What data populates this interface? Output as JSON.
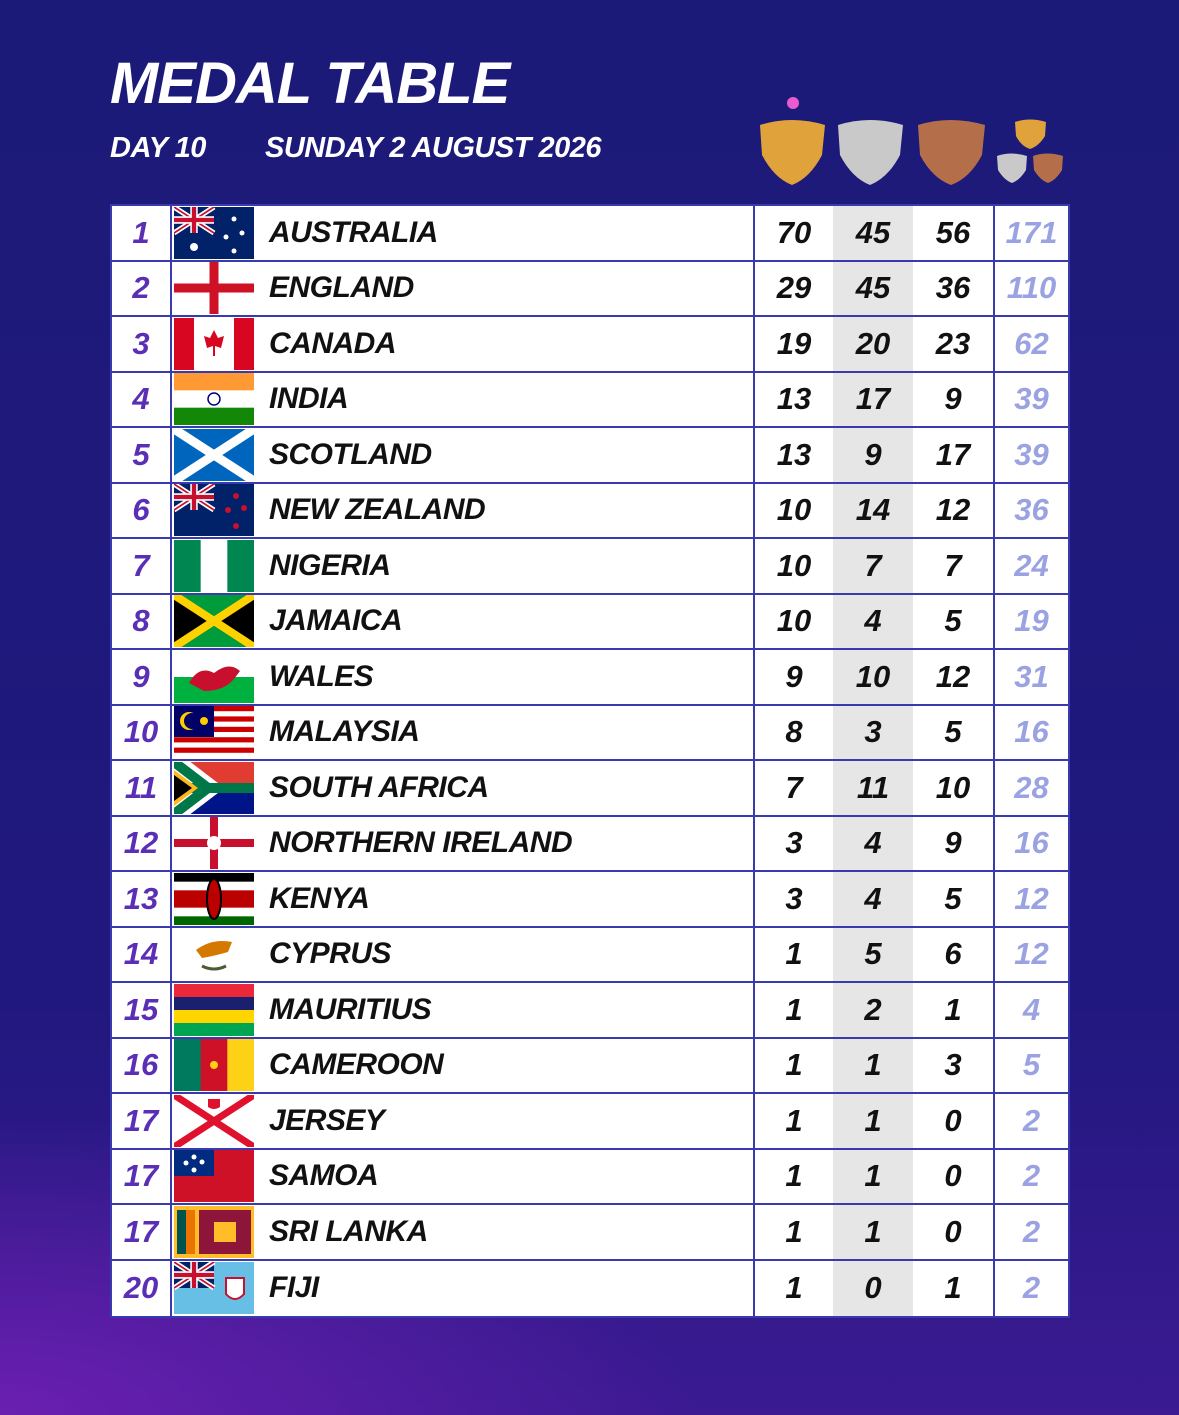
{
  "header": {
    "title": "MEDAL TABLE",
    "day": "DAY 10",
    "date": "SUNDAY 2 AUGUST 2026"
  },
  "table": {
    "rows": [
      [
        1,
        "AUSTRALIA",
        70,
        45,
        56,
        171
      ],
      [
        2,
        "ENGLAND",
        29,
        45,
        36,
        110
      ],
      [
        3,
        "CANADA",
        19,
        20,
        23,
        62
      ],
      [
        4,
        "INDIA",
        13,
        17,
        9,
        39
      ],
      [
        5,
        "SCOTLAND",
        13,
        9,
        17,
        39
      ],
      [
        6,
        "NEW ZEALAND",
        10,
        14,
        12,
        36
      ],
      [
        7,
        "NIGERIA",
        10,
        7,
        7,
        24
      ],
      [
        8,
        "JAMAICA",
        10,
        4,
        5,
        19
      ],
      [
        9,
        "WALES",
        9,
        10,
        12,
        31
      ],
      [
        10,
        "MALAYSIA",
        8,
        3,
        5,
        16
      ],
      [
        11,
        "SOUTH AFRICA",
        7,
        11,
        10,
        28
      ],
      [
        12,
        "NORTHERN IRELAND",
        3,
        4,
        9,
        16
      ],
      [
        13,
        "KENYA",
        3,
        4,
        5,
        12
      ],
      [
        14,
        "CYPRUS",
        1,
        5,
        6,
        12
      ],
      [
        15,
        "MAURITIUS",
        1,
        2,
        1,
        4
      ],
      [
        16,
        "CAMEROON",
        1,
        1,
        3,
        5
      ],
      [
        17,
        "JERSEY",
        1,
        1,
        0,
        2
      ],
      [
        17,
        "SAMOA",
        1,
        1,
        0,
        2
      ],
      [
        17,
        "SRI LANKA",
        1,
        1,
        0,
        2
      ],
      [
        20,
        "FIJI",
        1,
        0,
        1,
        2
      ]
    ]
  }
}
